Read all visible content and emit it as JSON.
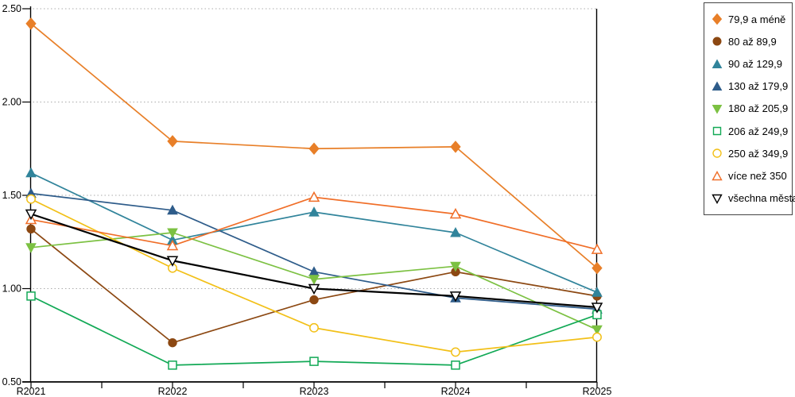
{
  "chart_data": {
    "type": "line",
    "title": "",
    "xlabel": "",
    "ylabel": "",
    "categories": [
      "R2021",
      "R2022",
      "R2023",
      "R2024",
      "R2025"
    ],
    "y_axis": {
      "min": 0.5,
      "max": 2.5,
      "step": 0.5,
      "tick_labels": [
        "0.50",
        "1.00",
        "1.50",
        "2.00",
        "2.50"
      ]
    },
    "grid": "horizontal-dotted",
    "grid_color": "#ABABAB",
    "axis_color": "#000000",
    "legend_position": "right",
    "series": [
      {
        "name": "79,9 a méně",
        "color": "#E87F28",
        "marker": "diamond",
        "marker_fill": "filled",
        "values": [
          2.42,
          1.79,
          1.75,
          1.76,
          1.11
        ]
      },
      {
        "name": "80 až 89,9",
        "color": "#8C4812",
        "marker": "circle",
        "marker_fill": "filled",
        "values": [
          1.32,
          0.71,
          0.94,
          1.09,
          0.96
        ]
      },
      {
        "name": "90 až 129,9",
        "color": "#31849B",
        "marker": "triangle-up",
        "marker_fill": "filled",
        "values": [
          1.62,
          1.26,
          1.41,
          1.3,
          0.98
        ]
      },
      {
        "name": "130 až 179,9",
        "color": "#2E5C8A",
        "marker": "triangle-up",
        "marker_fill": "filled",
        "values": [
          1.51,
          1.42,
          1.09,
          0.95,
          0.89
        ]
      },
      {
        "name": "180 až 205,9",
        "color": "#7CC142",
        "marker": "triangle-down",
        "marker_fill": "filled",
        "values": [
          1.22,
          1.3,
          1.05,
          1.12,
          0.78
        ]
      },
      {
        "name": "206 až 249,9",
        "color": "#12A956",
        "marker": "square",
        "marker_fill": "open",
        "values": [
          0.96,
          0.59,
          0.61,
          0.59,
          0.86
        ]
      },
      {
        "name": "250 až 349,9",
        "color": "#F2C018",
        "marker": "circle",
        "marker_fill": "open",
        "values": [
          1.48,
          1.11,
          0.79,
          0.66,
          0.74
        ]
      },
      {
        "name": "více než 350",
        "color": "#F06E28",
        "marker": "triangle-up",
        "marker_fill": "open",
        "values": [
          1.37,
          1.23,
          1.49,
          1.4,
          1.21
        ]
      },
      {
        "name": "všechna města",
        "color": "#000000",
        "marker": "triangle-down",
        "marker_fill": "open",
        "values": [
          1.4,
          1.15,
          1.0,
          0.96,
          0.9
        ],
        "line_width": 2.2
      }
    ]
  }
}
